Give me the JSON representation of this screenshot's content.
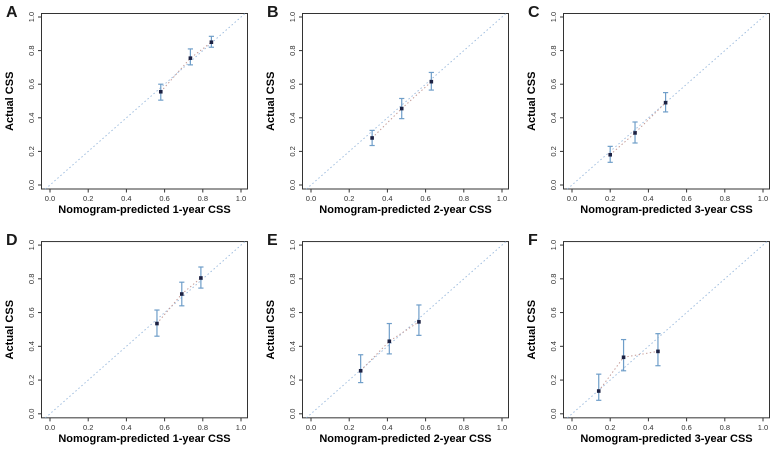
{
  "figure": {
    "background": "#ffffff",
    "ylabel": "Actual CSS",
    "axis": {
      "ticks": [
        0.0,
        0.2,
        0.4,
        0.6,
        0.8,
        1.0
      ],
      "tick_labels": [
        "0.0",
        "0.2",
        "0.4",
        "0.6",
        "0.8",
        "1.0"
      ],
      "xlim": [
        0,
        1
      ],
      "ylim": [
        0,
        1
      ]
    },
    "colors": {
      "frame": "#333333",
      "tick_text": "#333333",
      "axis_title": "#000000",
      "panel_letter": "#1a1a1a",
      "diagonal_line": "#8fb2d9",
      "calibration_line": "#c49a96",
      "error_bar": "#6f9ec9",
      "data_point": "#1d2243"
    }
  },
  "chart_data": [
    {
      "panel": "A",
      "type": "scatter",
      "xlabel": "Nomogram-predicted 1-year CSS",
      "ylabel": "Actual CSS",
      "xlim": [
        0,
        1
      ],
      "ylim": [
        0,
        1
      ],
      "reference_line": "ideal 45-degree diagonal (y = x), dotted",
      "points": [
        {
          "x": 0.58,
          "y": 0.555,
          "lo": 0.505,
          "hi": 0.6
        },
        {
          "x": 0.735,
          "y": 0.755,
          "lo": 0.715,
          "hi": 0.81
        },
        {
          "x": 0.845,
          "y": 0.85,
          "lo": 0.82,
          "hi": 0.885
        }
      ]
    },
    {
      "panel": "B",
      "type": "scatter",
      "xlabel": "Nomogram-predicted 2-year CSS",
      "ylabel": "Actual CSS",
      "xlim": [
        0,
        1
      ],
      "ylim": [
        0,
        1
      ],
      "reference_line": "ideal 45-degree diagonal (y = x), dotted",
      "points": [
        {
          "x": 0.32,
          "y": 0.28,
          "lo": 0.235,
          "hi": 0.325
        },
        {
          "x": 0.475,
          "y": 0.455,
          "lo": 0.395,
          "hi": 0.515
        },
        {
          "x": 0.63,
          "y": 0.615,
          "lo": 0.565,
          "hi": 0.67
        }
      ]
    },
    {
      "panel": "C",
      "type": "scatter",
      "xlabel": "Nomogram-predicted 3-year CSS",
      "ylabel": "Actual CSS",
      "xlim": [
        0,
        1
      ],
      "ylim": [
        0,
        1
      ],
      "reference_line": "ideal 45-degree diagonal (y = x), dotted",
      "points": [
        {
          "x": 0.2,
          "y": 0.18,
          "lo": 0.135,
          "hi": 0.23
        },
        {
          "x": 0.33,
          "y": 0.31,
          "lo": 0.25,
          "hi": 0.375
        },
        {
          "x": 0.49,
          "y": 0.49,
          "lo": 0.435,
          "hi": 0.55
        }
      ]
    },
    {
      "panel": "D",
      "type": "scatter",
      "xlabel": "Nomogram-predicted 1-year CSS",
      "ylabel": "Actual CSS",
      "xlim": [
        0,
        1
      ],
      "ylim": [
        0,
        1
      ],
      "reference_line": "ideal 45-degree diagonal (y = x), dotted",
      "points": [
        {
          "x": 0.56,
          "y": 0.535,
          "lo": 0.46,
          "hi": 0.615
        },
        {
          "x": 0.69,
          "y": 0.71,
          "lo": 0.64,
          "hi": 0.78
        },
        {
          "x": 0.79,
          "y": 0.805,
          "lo": 0.745,
          "hi": 0.87
        }
      ]
    },
    {
      "panel": "E",
      "type": "scatter",
      "xlabel": "Nomogram-predicted 2-year CSS",
      "ylabel": "Actual CSS",
      "xlim": [
        0,
        1
      ],
      "ylim": [
        0,
        1
      ],
      "reference_line": "ideal 45-degree diagonal (y = x), dotted",
      "points": [
        {
          "x": 0.26,
          "y": 0.255,
          "lo": 0.185,
          "hi": 0.35
        },
        {
          "x": 0.41,
          "y": 0.43,
          "lo": 0.355,
          "hi": 0.535
        },
        {
          "x": 0.565,
          "y": 0.545,
          "lo": 0.465,
          "hi": 0.645
        }
      ]
    },
    {
      "panel": "F",
      "type": "scatter",
      "xlabel": "Nomogram-predicted 3-year CSS",
      "ylabel": "Actual CSS",
      "xlim": [
        0,
        1
      ],
      "ylim": [
        0,
        1
      ],
      "reference_line": "ideal 45-degree diagonal (y = x), dotted",
      "points": [
        {
          "x": 0.14,
          "y": 0.135,
          "lo": 0.08,
          "hi": 0.235
        },
        {
          "x": 0.27,
          "y": 0.335,
          "lo": 0.255,
          "hi": 0.44
        },
        {
          "x": 0.45,
          "y": 0.37,
          "lo": 0.285,
          "hi": 0.475
        }
      ]
    }
  ]
}
